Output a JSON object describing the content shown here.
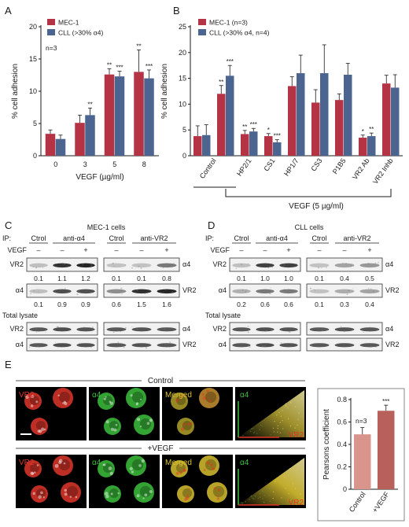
{
  "panels": {
    "A": "A",
    "B": "B",
    "C": "C",
    "D": "D",
    "E": "E"
  },
  "colors": {
    "mec": "#b43446",
    "cll": "#4b6490",
    "cell_red": "#e0362a",
    "cell_green": "#3cc03c",
    "bar_ctrl": "#d9948c",
    "bar_vegf": "#b8605c"
  },
  "chart_data": [
    {
      "type": "bar",
      "panel": "A",
      "ylabel": "% cell adhesion",
      "xlabel": "VEGF (µg/ml)",
      "ylim": [
        0,
        20
      ],
      "yticks": [
        "0",
        "5",
        "10",
        "15",
        "20"
      ],
      "categories": [
        "0",
        "3",
        "5",
        "8"
      ],
      "annotation": "n=3",
      "series": [
        {
          "name": "MEC-1",
          "values": [
            3.4,
            5.1,
            12.6,
            13.0
          ],
          "errors": [
            0.6,
            1.2,
            0.9,
            3.4
          ],
          "stars": [
            "",
            "",
            "**",
            "**"
          ]
        },
        {
          "name": "CLL (>30% α4)",
          "values": [
            2.6,
            6.3,
            12.3,
            12.0
          ],
          "errors": [
            0.6,
            1.1,
            0.8,
            1.3
          ],
          "stars": [
            "",
            "**",
            "***",
            "***"
          ]
        }
      ],
      "legend": "top-left"
    },
    {
      "type": "bar",
      "panel": "B",
      "ylabel": "% cell adhesion",
      "xlabel": "VEGF (5 µg/ml)",
      "ylim": [
        0,
        25
      ],
      "yticks": [
        "0",
        "5",
        "10",
        "15",
        "20",
        "25"
      ],
      "categories": [
        "Control",
        "",
        "HP2/1",
        "CS1",
        "HP1/7",
        "CS3",
        "P1B5",
        "VR2 Ab",
        "VR2 Inhb"
      ],
      "series": [
        {
          "name": "MEC-1 (n=3)",
          "values": [
            3.8,
            12.0,
            4.2,
            3.8,
            13.5,
            10.3,
            10.8,
            3.5,
            14.0
          ],
          "errors": [
            2.0,
            1.6,
            0.7,
            0.5,
            1.8,
            2.5,
            1.2,
            0.5,
            1.6
          ],
          "stars": [
            "",
            "**",
            "**",
            "*",
            "",
            "",
            "",
            "*",
            ""
          ]
        },
        {
          "name": "CLL (>30% α4, n=4)",
          "values": [
            4.0,
            15.5,
            4.7,
            2.6,
            16.0,
            16.0,
            15.7,
            3.8,
            13.2
          ],
          "errors": [
            2.0,
            2.0,
            0.6,
            0.5,
            3.5,
            5.5,
            2.2,
            0.6,
            2.5
          ],
          "stars": [
            "",
            "***",
            "***",
            "***",
            "",
            "",
            "",
            "**",
            ""
          ]
        }
      ],
      "legend": "top-left"
    },
    {
      "type": "bar",
      "panel": "E",
      "ylabel": "Pearsons coefficient",
      "ylim": [
        0,
        0.8
      ],
      "yticks": [
        "0",
        "0.2",
        "0.4",
        "0.6",
        "0.8"
      ],
      "categories": [
        "Control",
        "+VEGF"
      ],
      "values": [
        0.49,
        0.7
      ],
      "errors": [
        0.06,
        0.05
      ],
      "stars": [
        "",
        "***"
      ],
      "annotation": "n=3"
    }
  ],
  "blots": {
    "C": {
      "title": "MEC-1 cells",
      "ip_label": "IP:",
      "vegf_label": "VEGF",
      "groups": [
        {
          "label": "Ctrol",
          "signs": [
            "–"
          ]
        },
        {
          "label": "anti-α4",
          "signs": [
            "–",
            "+"
          ]
        },
        {
          "label": "Ctrol",
          "signs": [
            "–"
          ]
        },
        {
          "label": "anti-VR2",
          "signs": [
            "–",
            "+"
          ]
        }
      ],
      "rows": [
        {
          "left": "VR2",
          "right": "α4",
          "values": [
            "0.1",
            "1.1",
            "1.2",
            "0.1",
            "0.1",
            "0.8"
          ]
        },
        {
          "left": "α4",
          "right": "VR2",
          "values": [
            "0.1",
            "0.9",
            "0.9",
            "0.6",
            "1.5",
            "1.6"
          ]
        }
      ],
      "total_label": "Total lysate",
      "total_rows": [
        {
          "left": "VR2",
          "right": "α4"
        },
        {
          "left": "α4",
          "right": "VR2"
        }
      ]
    },
    "D": {
      "title": "CLL cells",
      "ip_label": "IP:",
      "vegf_label": "VEGF",
      "groups": [
        {
          "label": "Ctrol",
          "signs": [
            "–"
          ]
        },
        {
          "label": "anti-α4",
          "signs": [
            "–",
            "+"
          ]
        },
        {
          "label": "Ctrol",
          "signs": [
            "–"
          ]
        },
        {
          "label": "anti-VR2",
          "signs": [
            "–",
            "+"
          ]
        }
      ],
      "rows": [
        {
          "left": "VR2",
          "right": "α4",
          "values": [
            "0.1",
            "1.0",
            "1.0",
            "0.1",
            "0.4",
            "0.5"
          ]
        },
        {
          "left": "α4",
          "right": "VR2",
          "values": [
            "0.2",
            "0.6",
            "0.6",
            "0.1",
            "0.3",
            "0.4"
          ]
        }
      ],
      "total_label": "Total lysate",
      "total_rows": [
        {
          "left": "VR2",
          "right": "α4"
        },
        {
          "left": "α4",
          "right": "VR2"
        }
      ]
    }
  },
  "micro": {
    "rows": [
      {
        "title": "Control",
        "labels": [
          "VR2",
          "α4",
          "Merged",
          "α4",
          "VR2"
        ]
      },
      {
        "title": "+VEGF",
        "labels": [
          "VR2",
          "α4",
          "Merged",
          "α4",
          "VR2"
        ]
      }
    ]
  }
}
